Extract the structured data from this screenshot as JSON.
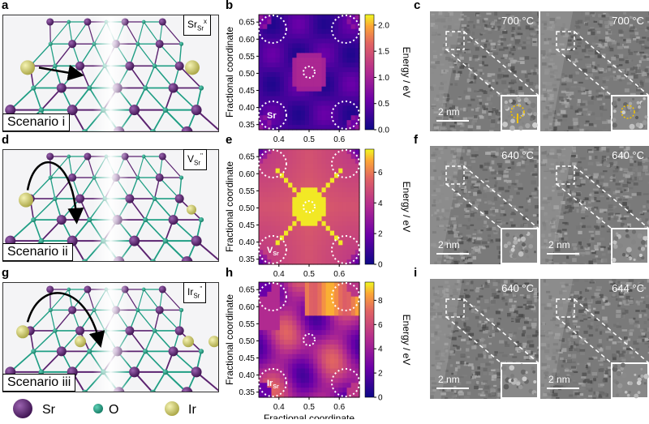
{
  "panel_labels": [
    "a",
    "b",
    "c",
    "d",
    "e",
    "f",
    "g",
    "h",
    "i"
  ],
  "scenarios": [
    {
      "label": "Scenario i",
      "tag_main": "Sr",
      "tag_sub": "Sr",
      "tag_sup": "x"
    },
    {
      "label": "Scenario ii",
      "tag_main": "V",
      "tag_sub": "Sr",
      "tag_sup": "''"
    },
    {
      "label": "Scenario iii",
      "tag_main": "Ir",
      "tag_sub": "Sr",
      "tag_sup": "''"
    }
  ],
  "legend": [
    {
      "label": "Sr",
      "color": "#5b2370"
    },
    {
      "label": "O",
      "color": "#1f9e84"
    },
    {
      "label": "Ir",
      "color": "#d6d277"
    }
  ],
  "chart_data": [
    {
      "type": "heatmap",
      "ylabel": "Fractional coordinate",
      "colorbar_label": "Energy / eV",
      "xticks": [
        "0.4",
        "0.5",
        "0.6"
      ],
      "yticks": [
        "0.35",
        "0.40",
        "0.45",
        "0.50",
        "0.55",
        "0.60",
        "0.65"
      ],
      "colorbar_ticks": [
        "0.0",
        "0.5",
        "1.0",
        "1.5",
        "2.0"
      ],
      "colorbar_range": [
        0,
        2.2
      ],
      "site_label": "Sr"
    },
    {
      "type": "heatmap",
      "ylabel": "Fractional coordinate",
      "colorbar_label": "Energy / eV",
      "xticks": [
        "0.4",
        "0.5",
        "0.6"
      ],
      "yticks": [
        "0.35",
        "0.40",
        "0.45",
        "0.50",
        "0.55",
        "0.60",
        "0.65"
      ],
      "colorbar_ticks": [
        "0",
        "2",
        "4",
        "6"
      ],
      "colorbar_range": [
        0,
        7.5
      ],
      "site_label": "V",
      "site_label_sub": "Sr"
    },
    {
      "type": "heatmap",
      "ylabel": "Fractional coordinate",
      "xlabel": "Fractional coordinate",
      "colorbar_label": "Energy / eV",
      "xticks": [
        "0.4",
        "0.5",
        "0.6"
      ],
      "yticks": [
        "0.35",
        "0.40",
        "0.45",
        "0.50",
        "0.55",
        "0.60",
        "0.65"
      ],
      "colorbar_ticks": [
        "0",
        "2",
        "4",
        "6",
        "8"
      ],
      "colorbar_range": [
        0,
        9.5
      ],
      "site_label": "Ir",
      "site_label_sub": "Sr"
    }
  ],
  "tem": [
    {
      "left_temp": "700 °C",
      "right_temp": "700 °C",
      "scale": "2 nm"
    },
    {
      "left_temp": "640 °C",
      "right_temp": "640 °C",
      "scale": "2 nm"
    },
    {
      "left_temp": "640 °C",
      "right_temp": "644 °C",
      "scale": "2 nm"
    }
  ]
}
